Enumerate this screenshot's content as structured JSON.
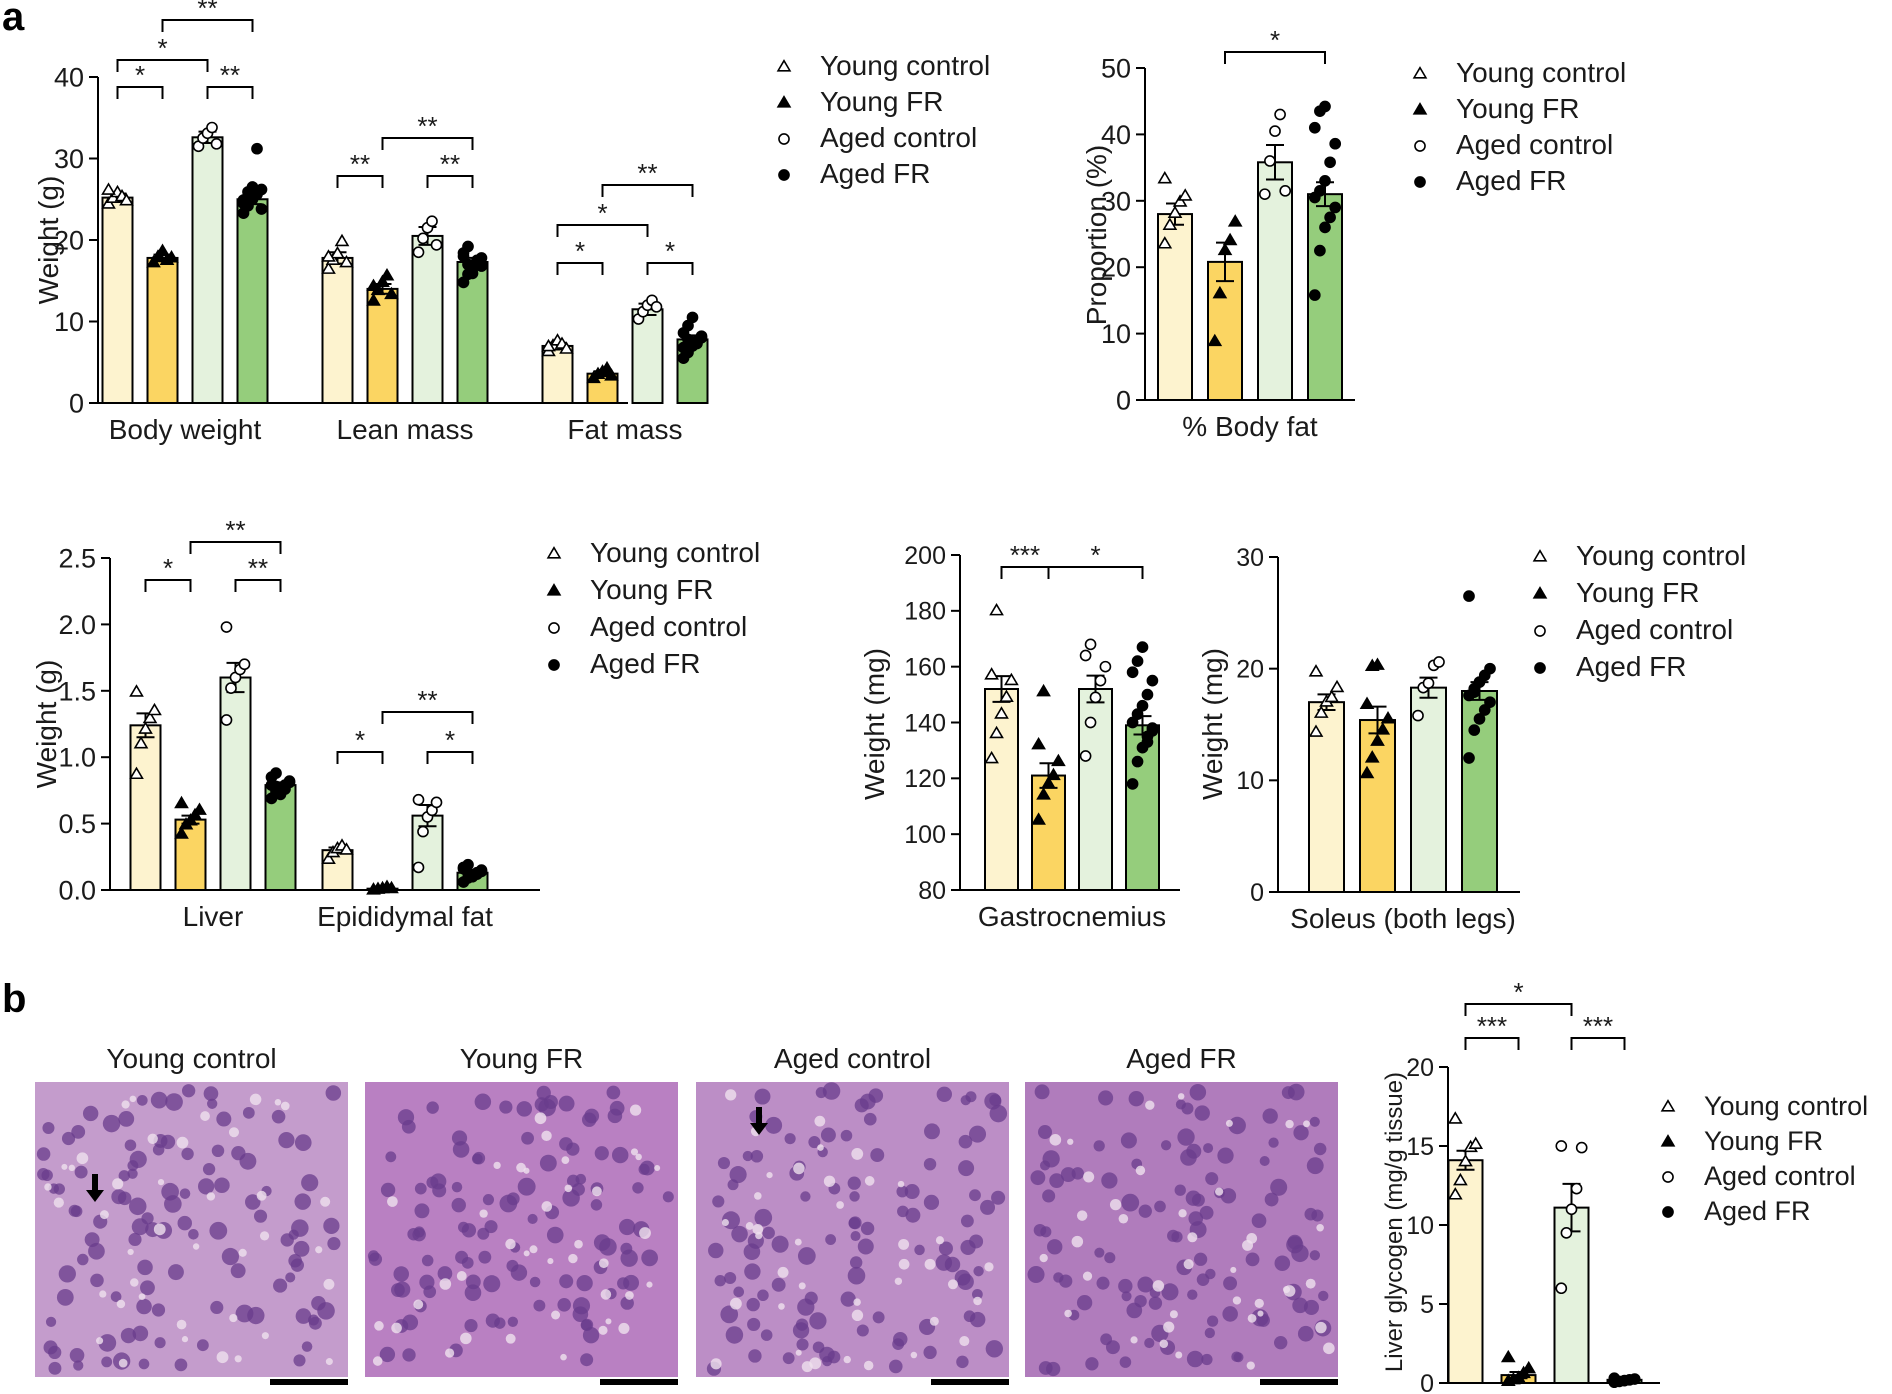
{
  "panel_labels": [
    "a",
    "b"
  ],
  "groups": {
    "labels": [
      "Young control",
      "Young FR",
      "Aged control",
      "Aged FR"
    ],
    "fills": [
      "#fdf3cf",
      "#fbd562",
      "#e4f2dd",
      "#95cd7c"
    ],
    "markers": [
      "open-triangle-icon",
      "filled-triangle-icon",
      "open-circle-icon",
      "filled-circle-icon"
    ]
  },
  "histology": {
    "titles": [
      "Young control",
      "Young FR",
      "Aged control",
      "Aged FR"
    ],
    "tints": [
      "#c49ccc",
      "#b980c2",
      "#bc8ec6",
      "#b07cbc"
    ],
    "nucleus_color": "#6a3c8c",
    "has_arrow": [
      true,
      false,
      true,
      false
    ]
  },
  "chart_data": [
    {
      "id": "body-composition",
      "type": "bar",
      "title": "",
      "xlabel": "",
      "ylabel": "Weight (g)",
      "ylim": [
        0,
        40
      ],
      "yticks": [
        0,
        10,
        20,
        30,
        40
      ],
      "categories": [
        "Body weight",
        "Lean mass",
        "Fat mass"
      ],
      "series": [
        {
          "name": "Young control",
          "values": [
            25.2,
            17.8,
            7.0
          ]
        },
        {
          "name": "Young FR",
          "values": [
            17.8,
            14.0,
            3.6
          ]
        },
        {
          "name": "Aged control",
          "values": [
            32.6,
            20.5,
            11.5
          ]
        },
        {
          "name": "Aged FR",
          "values": [
            25.0,
            17.3,
            7.8
          ]
        }
      ],
      "legend": [
        "Young control",
        "Young FR",
        "Aged control",
        "Aged FR"
      ],
      "significance": [
        {
          "cat": 0,
          "from": 0,
          "to": 1,
          "label": "*"
        },
        {
          "cat": 0,
          "from": 0,
          "to": 2,
          "label": "*"
        },
        {
          "cat": 0,
          "from": 2,
          "to": 3,
          "label": "**"
        },
        {
          "cat": 0,
          "from": 1,
          "to": 3,
          "label": "**"
        },
        {
          "cat": 1,
          "from": 0,
          "to": 1,
          "label": "**"
        },
        {
          "cat": 1,
          "from": 2,
          "to": 3,
          "label": "**"
        },
        {
          "cat": 1,
          "from": 1,
          "to": 3,
          "label": "**"
        },
        {
          "cat": 2,
          "from": 0,
          "to": 1,
          "label": "*"
        },
        {
          "cat": 2,
          "from": 0,
          "to": 2,
          "label": "*"
        },
        {
          "cat": 2,
          "from": 2,
          "to": 3,
          "label": "*"
        },
        {
          "cat": 2,
          "from": 1,
          "to": 3,
          "label": "**"
        }
      ]
    },
    {
      "id": "body-fat",
      "type": "bar",
      "title": "",
      "xlabel": "",
      "ylabel": "Proportion (%)",
      "ylim": [
        0,
        50
      ],
      "yticks": [
        0,
        10,
        20,
        30,
        40,
        50
      ],
      "categories": [
        "% Body fat"
      ],
      "series": [
        {
          "name": "Young control",
          "values": [
            28.0
          ]
        },
        {
          "name": "Young FR",
          "values": [
            20.8
          ]
        },
        {
          "name": "Aged control",
          "values": [
            35.8
          ]
        },
        {
          "name": "Aged FR",
          "values": [
            31.0
          ]
        }
      ],
      "legend": [
        "Young control",
        "Young FR",
        "Aged control",
        "Aged FR"
      ],
      "significance": [
        {
          "cat": 0,
          "from": 1,
          "to": 3,
          "label": "*"
        }
      ]
    },
    {
      "id": "liver-fat",
      "type": "bar",
      "title": "",
      "xlabel": "",
      "ylabel": "Weight (g)",
      "ylim": [
        0,
        2.5
      ],
      "yticks": [
        "0.0",
        "0.5",
        "1.0",
        "1.5",
        "2.0",
        "2.5"
      ],
      "categories": [
        "Liver",
        "Epididymal fat"
      ],
      "series": [
        {
          "name": "Young control",
          "values": [
            1.24,
            0.3
          ]
        },
        {
          "name": "Young FR",
          "values": [
            0.53,
            0.01
          ]
        },
        {
          "name": "Aged control",
          "values": [
            1.6,
            0.56
          ]
        },
        {
          "name": "Aged FR",
          "values": [
            0.79,
            0.13
          ]
        }
      ],
      "legend": [
        "Young control",
        "Young FR",
        "Aged control",
        "Aged FR"
      ],
      "significance": [
        {
          "cat": 0,
          "from": 0,
          "to": 1,
          "label": "*"
        },
        {
          "cat": 0,
          "from": 2,
          "to": 3,
          "label": "**"
        },
        {
          "cat": 0,
          "from": 1,
          "to": 3,
          "label": "**"
        },
        {
          "cat": 1,
          "from": 0,
          "to": 1,
          "label": "*"
        },
        {
          "cat": 1,
          "from": 2,
          "to": 3,
          "label": "*"
        },
        {
          "cat": 1,
          "from": 1,
          "to": 3,
          "label": "**"
        }
      ]
    },
    {
      "id": "gastrocnemius",
      "type": "bar",
      "title": "",
      "xlabel": "",
      "ylabel": "Weight (mg)",
      "ylim": [
        80,
        200
      ],
      "yticks": [
        80,
        100,
        120,
        140,
        160,
        180,
        200
      ],
      "categories": [
        "Gastrocnemius"
      ],
      "series": [
        {
          "name": "Young control",
          "values": [
            152
          ]
        },
        {
          "name": "Young FR",
          "values": [
            121
          ]
        },
        {
          "name": "Aged control",
          "values": [
            152
          ]
        },
        {
          "name": "Aged FR",
          "values": [
            139
          ]
        }
      ],
      "legend": [],
      "significance": [
        {
          "cat": 0,
          "from": 0,
          "to": 1,
          "label": "***"
        },
        {
          "cat": 0,
          "from": 1,
          "to": 3,
          "label": "*"
        }
      ]
    },
    {
      "id": "soleus",
      "type": "bar",
      "title": "",
      "xlabel": "",
      "ylabel": "Weight (mg)",
      "ylim": [
        0,
        30
      ],
      "yticks": [
        0,
        10,
        20,
        30
      ],
      "categories": [
        "Soleus (both legs)"
      ],
      "series": [
        {
          "name": "Young control",
          "values": [
            17.0
          ]
        },
        {
          "name": "Young FR",
          "values": [
            15.4
          ]
        },
        {
          "name": "Aged control",
          "values": [
            18.3
          ]
        },
        {
          "name": "Aged FR",
          "values": [
            18.0
          ]
        }
      ],
      "legend": [
        "Young control",
        "Young FR",
        "Aged control",
        "Aged FR"
      ],
      "significance": []
    },
    {
      "id": "liver-glycogen",
      "type": "bar",
      "title": "",
      "xlabel": "",
      "ylabel": "Liver glycogen (mg/g tissue)",
      "ylim": [
        0,
        20
      ],
      "yticks": [
        0,
        5,
        10,
        15,
        20
      ],
      "categories": [
        ""
      ],
      "series": [
        {
          "name": "Young control",
          "values": [
            14.1
          ]
        },
        {
          "name": "Young FR",
          "values": [
            0.5
          ]
        },
        {
          "name": "Aged control",
          "values": [
            11.1
          ]
        },
        {
          "name": "Aged FR",
          "values": [
            0.2
          ]
        }
      ],
      "legend": [
        "Young control",
        "Young FR",
        "Aged control",
        "Aged FR"
      ],
      "significance": [
        {
          "cat": 0,
          "from": 0,
          "to": 1,
          "label": "***"
        },
        {
          "cat": 0,
          "from": 0,
          "to": 2,
          "label": "*"
        },
        {
          "cat": 0,
          "from": 2,
          "to": 3,
          "label": "***"
        }
      ]
    }
  ]
}
